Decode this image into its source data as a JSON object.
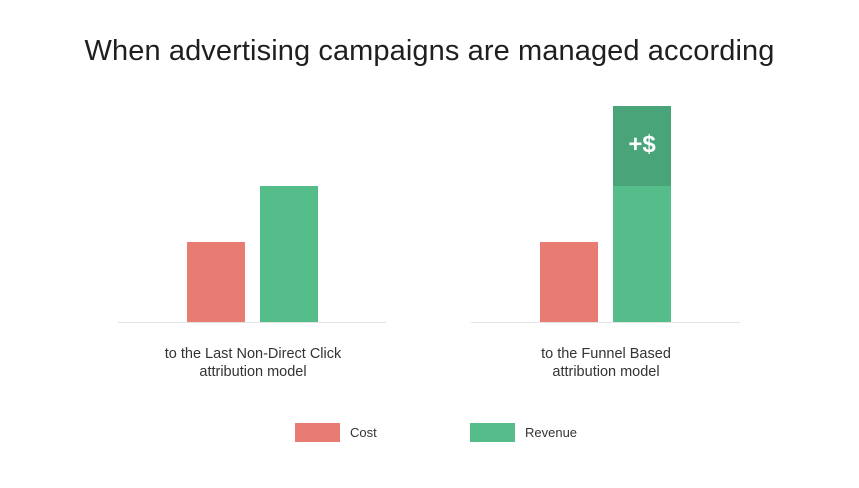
{
  "chart_data": {
    "type": "bar",
    "title": "When advertising campaigns are managed according",
    "series": [
      {
        "name": "Cost",
        "color": "#e87b72"
      },
      {
        "name": "Revenue",
        "color": "#55bd8a"
      }
    ],
    "panels": [
      {
        "label_lines": [
          "to the Last Non-Direct Click",
          "attribution model"
        ],
        "cost": 1.0,
        "revenue": 1.7,
        "extra_revenue": 0
      },
      {
        "label_lines": [
          "to the Funnel Based",
          "attribution model"
        ],
        "cost": 1.0,
        "revenue": 1.7,
        "extra_revenue": 1.0,
        "extra_label": "+$",
        "extra_color": "#4aa47a"
      }
    ],
    "value_scale": "relative (no axis values shown)",
    "grid": false,
    "legend_position": "bottom-center"
  }
}
